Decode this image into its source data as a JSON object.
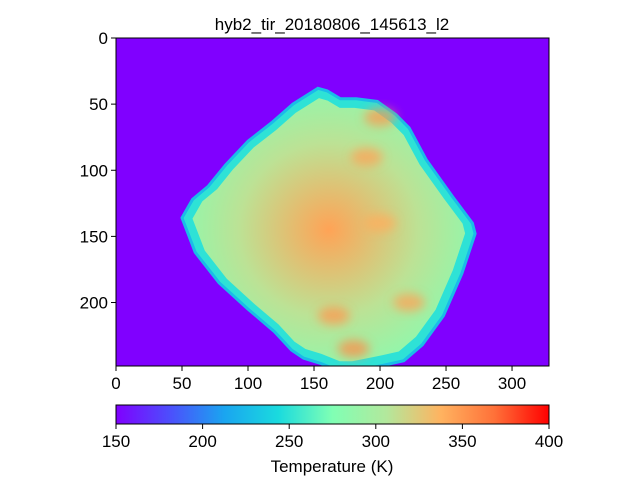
{
  "chart_data": {
    "type": "heatmap",
    "title": "hyb2_tir_20180806_145613_l2",
    "xlabel": "",
    "ylabel": "",
    "xlim": [
      0,
      328
    ],
    "ylim": [
      248,
      0
    ],
    "x_ticks": [
      0,
      50,
      100,
      150,
      200,
      250,
      300
    ],
    "y_ticks": [
      0,
      50,
      100,
      150,
      200
    ],
    "background_value": 150,
    "colorbar": {
      "label": "Temperature (K)",
      "range": [
        150,
        400
      ],
      "ticks": [
        150,
        200,
        250,
        300,
        350,
        400
      ],
      "colormap": "rainbow",
      "orientation": "horizontal",
      "placement": "bottom"
    },
    "object": {
      "name": "",
      "outline_vertices": [
        [
          153,
          38
        ],
        [
          160,
          40
        ],
        [
          170,
          46
        ],
        [
          182,
          46
        ],
        [
          198,
          48
        ],
        [
          212,
          58
        ],
        [
          222,
          68
        ],
        [
          235,
          92
        ],
        [
          255,
          120
        ],
        [
          270,
          140
        ],
        [
          272,
          148
        ],
        [
          262,
          178
        ],
        [
          248,
          210
        ],
        [
          232,
          232
        ],
        [
          218,
          244
        ],
        [
          200,
          248
        ],
        [
          180,
          252
        ],
        [
          170,
          252
        ],
        [
          155,
          246
        ],
        [
          142,
          242
        ],
        [
          133,
          236
        ],
        [
          120,
          222
        ],
        [
          100,
          205
        ],
        [
          78,
          185
        ],
        [
          60,
          162
        ],
        [
          50,
          136
        ],
        [
          58,
          122
        ],
        [
          70,
          112
        ],
        [
          83,
          96
        ],
        [
          100,
          78
        ],
        [
          118,
          64
        ],
        [
          134,
          50
        ]
      ],
      "edge_temperature": 250,
      "body_temperature": 310,
      "center_temperature": 345,
      "hotspots": [
        {
          "x": 190,
          "y": 90,
          "value": 345
        },
        {
          "x": 165,
          "y": 210,
          "value": 350
        },
        {
          "x": 222,
          "y": 200,
          "value": 345
        },
        {
          "x": 200,
          "y": 140,
          "value": 340
        },
        {
          "x": 180,
          "y": 235,
          "value": 355
        },
        {
          "x": 200,
          "y": 60,
          "value": 350
        }
      ]
    }
  }
}
